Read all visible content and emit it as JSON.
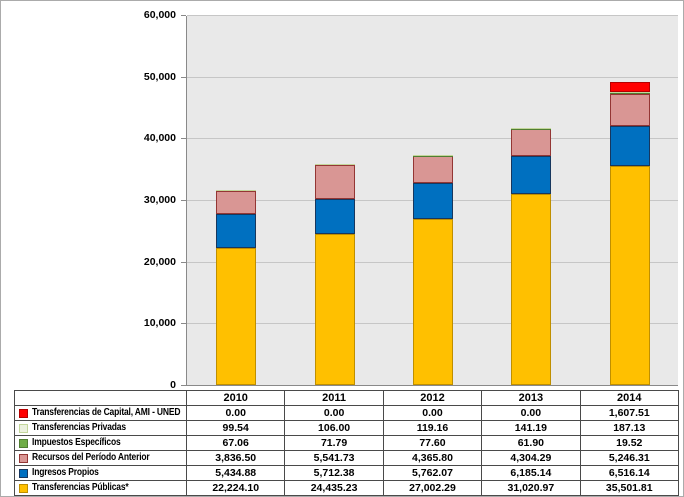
{
  "chart_data": {
    "type": "bar",
    "stacked": true,
    "title": "",
    "xlabel": "",
    "ylabel": "",
    "categories": [
      "2010",
      "2011",
      "2012",
      "2013",
      "2014"
    ],
    "series": [
      {
        "name": "Transferencias de Capital, AMI - UNED",
        "color": "#FF0000",
        "border": "#B30000",
        "values": [
          0.0,
          0.0,
          0.0,
          0.0,
          1607.51
        ]
      },
      {
        "name": "Transferencias Privadas",
        "color": "#EBF1DE",
        "border": "#C3D69B",
        "values": [
          99.54,
          106.0,
          119.16,
          141.19,
          187.13
        ]
      },
      {
        "name": "Impuestos Específicos",
        "color": "#70AD47",
        "border": "#507E32",
        "values": [
          67.06,
          71.79,
          77.6,
          61.9,
          19.52
        ]
      },
      {
        "name": "Recursos del Período Anterior",
        "color": "#D99694",
        "border": "#943634",
        "values": [
          3836.5,
          5541.73,
          4365.8,
          4304.29,
          5246.31
        ]
      },
      {
        "name": "Ingresos Propios",
        "color": "#0070C0",
        "border": "#17375E",
        "values": [
          5434.88,
          5712.38,
          5762.07,
          6185.14,
          6516.14
        ]
      },
      {
        "name": "Transferencias Públicas*",
        "color": "#FFC000",
        "border": "#BF8F00",
        "values": [
          22224.1,
          24435.23,
          27002.29,
          31020.97,
          35501.81
        ]
      }
    ],
    "stack_order_bottom_to_top": [
      "Transferencias Públicas*",
      "Ingresos Propios",
      "Recursos del Período Anterior",
      "Impuestos Específicos",
      "Transferencias Privadas",
      "Transferencias de Capital, AMI - UNED"
    ],
    "ylim": [
      0,
      60000
    ],
    "yticks": [
      0,
      10000,
      20000,
      30000,
      40000,
      50000,
      60000
    ],
    "grid": true,
    "legend_position": "data-table-left",
    "colors": {
      "plot_background": "#E9E9E9",
      "gridline": "#C6C6C6",
      "axis": "#898989",
      "table_border": "#4A4A4A",
      "text": "#000000",
      "chart_background": "#FFFFFF"
    }
  }
}
